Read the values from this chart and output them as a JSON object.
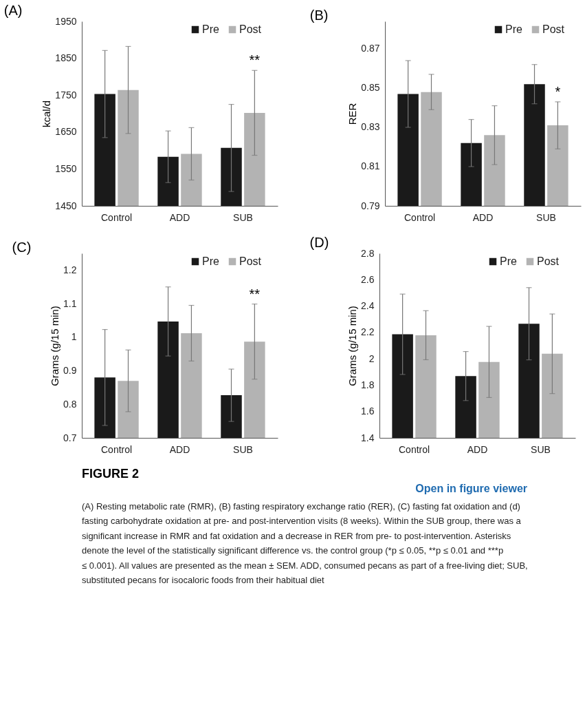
{
  "chart_data": [
    {
      "type": "bar",
      "title": "(A)",
      "ylabel": "kcal/d",
      "categories": [
        "Control",
        "ADD",
        "SUB"
      ],
      "ylim": [
        1450,
        1950
      ],
      "yticks": [
        1450,
        1550,
        1650,
        1750,
        1850,
        1950
      ],
      "legend": "top right",
      "series": [
        {
          "name": "Pre",
          "color": "#1a1a1a",
          "values": [
            1753,
            1583,
            1607
          ],
          "errors": [
            118,
            70,
            118
          ]
        },
        {
          "name": "Post",
          "color": "#b3b3b3",
          "values": [
            1764,
            1591,
            1702
          ],
          "errors": [
            118,
            71,
            115
          ]
        }
      ],
      "annotations": [
        "**"
      ]
    },
    {
      "type": "bar",
      "title": "(B)",
      "ylabel": "RER",
      "categories": [
        "Control",
        "ADD",
        "SUB"
      ],
      "ylim": [
        0.79,
        0.884
      ],
      "yticks": [
        0.79,
        0.81,
        0.83,
        0.85,
        0.87
      ],
      "legend": "top right",
      "series": [
        {
          "name": "Pre",
          "color": "#1a1a1a",
          "values": [
            0.847,
            0.822,
            0.852
          ],
          "errors": [
            0.017,
            0.012,
            0.01
          ]
        },
        {
          "name": "Post",
          "color": "#b3b3b3",
          "values": [
            0.848,
            0.826,
            0.831
          ],
          "errors": [
            0.009,
            0.015,
            0.012
          ]
        }
      ],
      "annotations": [
        "*"
      ]
    },
    {
      "type": "bar",
      "title": "(C)",
      "ylabel": "Grams (g/15 min)",
      "categories": [
        "Control",
        "ADD",
        "SUB"
      ],
      "ylim": [
        0.7,
        1.25
      ],
      "yticks": [
        0.7,
        0.8,
        0.9,
        1,
        1.1,
        1.2
      ],
      "legend": "top right",
      "series": [
        {
          "name": "Pre",
          "color": "#1a1a1a",
          "values": [
            0.88,
            1.047,
            0.827
          ],
          "errors": [
            0.143,
            0.103,
            0.078
          ]
        },
        {
          "name": "Post",
          "color": "#b3b3b3",
          "values": [
            0.87,
            1.012,
            0.987
          ],
          "errors": [
            0.092,
            0.083,
            0.112
          ]
        }
      ],
      "annotations": [
        "**"
      ]
    },
    {
      "type": "bar",
      "title": "(D)",
      "ylabel": "Grams (g/15 min)",
      "categories": [
        "Control",
        "ADD",
        "SUB"
      ],
      "ylim": [
        1.4,
        2.8
      ],
      "yticks": [
        1.4,
        1.6,
        1.8,
        2,
        2.2,
        2.4,
        2.6,
        2.8
      ],
      "legend": "top right",
      "series": [
        {
          "name": "Pre",
          "color": "#1a1a1a",
          "values": [
            2.186,
            1.869,
            2.266
          ],
          "errors": [
            0.305,
            0.186,
            0.274
          ]
        },
        {
          "name": "Post",
          "color": "#b3b3b3",
          "values": [
            2.179,
            1.976,
            2.038
          ],
          "errors": [
            0.186,
            0.27,
            0.302
          ]
        }
      ]
    },
    {
      "type": "other",
      "title": "FIGURE 2",
      "annotations": [
        "Open in figure viewer",
        "(A) Resting metabolic rate (RMR), (B) fasting respiratory exchange ratio (RER), (C) fasting fat oxidation and (d) fasting carbohydrate oxidation at pre- and post-intervention visits (8 weeks). Within the SUB group, there was a significant increase in RMR and fat oxidation and a decrease in RER from pre- to post-intervention. Asterisks denote the level of the statistically significant difference vs. the control group (*p ≤ 0.05, **p ≤ 0.01 and ***p ≤ 0.001). All values are presented as the mean ± SEM. ADD, consumed pecans as part of a free-living diet; SUB, substituted pecans for isocaloric foods from their habitual diet"
      ]
    }
  ]
}
